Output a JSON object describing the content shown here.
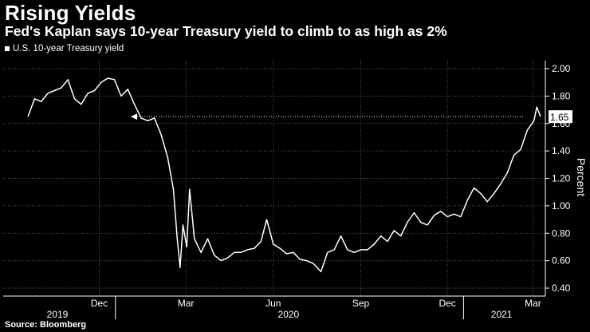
{
  "header": {
    "title": "Rising Yields",
    "subtitle": "Fed's Kaplan says 10-year Treasury yield to climb to as high as 2%"
  },
  "footer": {
    "source": "Source: Bloomberg"
  },
  "colors": {
    "background": "#000000",
    "line": "#ffffff",
    "grid": "#5a5a5a"
  },
  "chart_data": {
    "type": "line",
    "title": "Rising Yields",
    "subtitle": "Fed's Kaplan says 10-year Treasury yield to climb to as high as 2%",
    "ylabel": "Percent",
    "ylim": [
      0.4,
      2.05
    ],
    "yticks": [
      "2.00",
      "1.80",
      "1.60",
      "1.40",
      "1.20",
      "1.00",
      "0.80",
      "0.60",
      "0.40"
    ],
    "xaxis": {
      "month_ticks": [
        "Dec",
        "Mar",
        "Jun",
        "Sep",
        "Dec",
        "Mar"
      ],
      "year_labels": [
        "2019",
        "2020",
        "2021"
      ]
    },
    "grid": true,
    "legend_position": "top-left",
    "last_value_label": "1.65",
    "series": [
      {
        "name": "U.S. 10-year Treasury yield",
        "x": [
          "2019-10-01",
          "2019-10-08",
          "2019-10-15",
          "2019-10-22",
          "2019-10-29",
          "2019-11-05",
          "2019-11-12",
          "2019-11-19",
          "2019-11-26",
          "2019-12-03",
          "2019-12-10",
          "2019-12-17",
          "2019-12-24",
          "2019-12-31",
          "2020-01-07",
          "2020-01-14",
          "2020-01-21",
          "2020-01-28",
          "2020-02-04",
          "2020-02-11",
          "2020-02-18",
          "2020-02-25",
          "2020-03-02",
          "2020-03-06",
          "2020-03-09",
          "2020-03-12",
          "2020-03-16",
          "2020-03-19",
          "2020-03-24",
          "2020-03-31",
          "2020-04-07",
          "2020-04-14",
          "2020-04-21",
          "2020-04-28",
          "2020-05-05",
          "2020-05-12",
          "2020-05-19",
          "2020-05-26",
          "2020-06-02",
          "2020-06-08",
          "2020-06-15",
          "2020-06-22",
          "2020-06-29",
          "2020-07-06",
          "2020-07-13",
          "2020-07-20",
          "2020-07-27",
          "2020-08-04",
          "2020-08-11",
          "2020-08-18",
          "2020-08-25",
          "2020-09-01",
          "2020-09-08",
          "2020-09-15",
          "2020-09-22",
          "2020-09-29",
          "2020-10-06",
          "2020-10-13",
          "2020-10-20",
          "2020-10-27",
          "2020-11-03",
          "2020-11-10",
          "2020-11-17",
          "2020-11-24",
          "2020-12-01",
          "2020-12-08",
          "2020-12-15",
          "2020-12-22",
          "2020-12-29",
          "2021-01-05",
          "2021-01-12",
          "2021-01-19",
          "2021-01-26",
          "2021-02-02",
          "2021-02-09",
          "2021-02-16",
          "2021-02-23",
          "2021-03-02",
          "2021-03-09",
          "2021-03-16",
          "2021-03-19",
          "2021-03-23"
        ],
        "values": [
          1.65,
          1.78,
          1.76,
          1.82,
          1.84,
          1.86,
          1.92,
          1.78,
          1.74,
          1.82,
          1.84,
          1.9,
          1.93,
          1.92,
          1.8,
          1.85,
          1.74,
          1.64,
          1.62,
          1.64,
          1.52,
          1.35,
          1.12,
          0.76,
          0.55,
          0.86,
          0.7,
          1.12,
          0.76,
          0.66,
          0.76,
          0.64,
          0.6,
          0.62,
          0.66,
          0.66,
          0.68,
          0.69,
          0.74,
          0.9,
          0.72,
          0.69,
          0.65,
          0.66,
          0.61,
          0.6,
          0.58,
          0.52,
          0.66,
          0.68,
          0.78,
          0.68,
          0.66,
          0.68,
          0.68,
          0.72,
          0.78,
          0.74,
          0.82,
          0.78,
          0.88,
          0.95,
          0.88,
          0.86,
          0.93,
          0.96,
          0.92,
          0.94,
          0.92,
          1.04,
          1.13,
          1.09,
          1.03,
          1.09,
          1.16,
          1.24,
          1.37,
          1.41,
          1.55,
          1.62,
          1.72,
          1.65
        ]
      }
    ]
  }
}
